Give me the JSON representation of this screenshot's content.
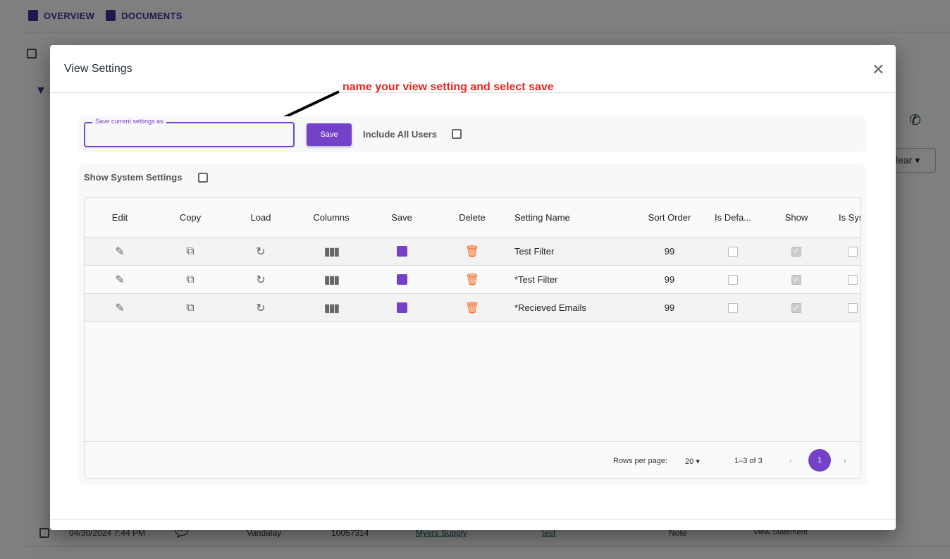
{
  "background": {
    "tabs": [
      {
        "label": "OVERVIEW",
        "icon": "file-icon"
      },
      {
        "label": "DOCUMENTS",
        "icon": "document-icon"
      }
    ],
    "clear_label": "lear",
    "row": {
      "date": "04/30/2024 7:44 PM",
      "company": "Vandalay",
      "number": "10057314",
      "vendor": "Myers Supply",
      "subject": "test",
      "type": "Note",
      "action": "View Statement"
    }
  },
  "modal": {
    "title": "View Settings",
    "annotation": "name your view setting and select save",
    "save_field": {
      "label": "Save current settings as",
      "value": ""
    },
    "save_button": "Save",
    "include_all_users": "Include All Users",
    "show_system_settings": "Show System Settings",
    "columns": [
      "Edit",
      "Copy",
      "Load",
      "Columns",
      "Save",
      "Delete",
      "Setting Name",
      "Sort Order",
      "Is Defa...",
      "Show",
      "Is Sys"
    ],
    "rows": [
      {
        "name": "Test Filter",
        "sort_order": "99",
        "is_default": false,
        "show": true,
        "is_system": false
      },
      {
        "name": "*Test Filter",
        "sort_order": "99",
        "is_default": false,
        "show": true,
        "is_system": false
      },
      {
        "name": "*Recieved Emails",
        "sort_order": "99",
        "is_default": false,
        "show": true,
        "is_system": false
      }
    ],
    "pagination": {
      "rows_per_page_label": "Rows per page:",
      "rows_per_page": "20",
      "range": "1–3 of 3",
      "page": "1"
    },
    "colors": {
      "accent": "#7442c8",
      "delete": "#f26b1d",
      "annotation": "#e8261c"
    }
  }
}
